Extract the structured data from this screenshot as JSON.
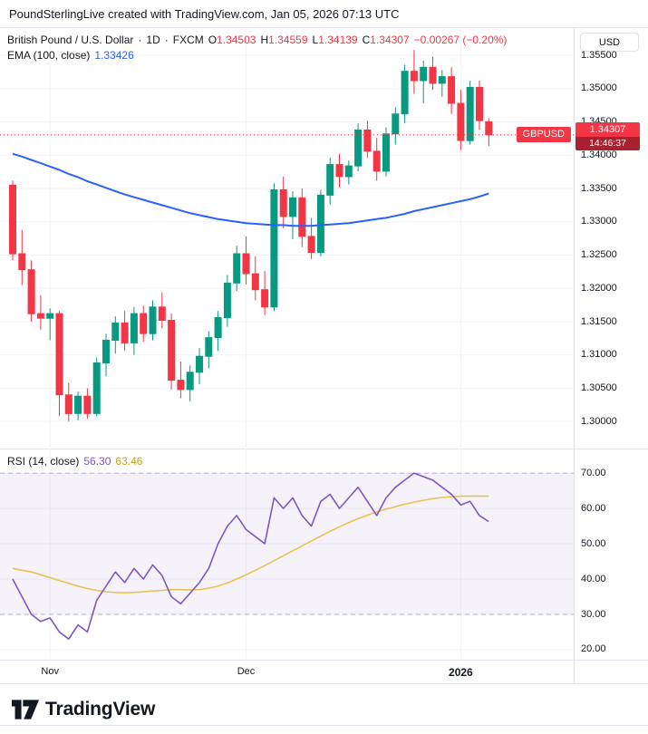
{
  "header": {
    "title": "PoundSterlingLive created with TradingView.com, Jan 05, 2026 07:13 UTC"
  },
  "legend": {
    "title": "British Pound / U.S. Dollar",
    "sep1": "·",
    "interval": "1D",
    "sep2": "·",
    "exchange": "FXCM",
    "open_label": "O",
    "open": "1.34503",
    "high_label": "H",
    "high": "1.34559",
    "low_label": "L",
    "low": "1.34139",
    "close_label": "C",
    "close": "1.34307",
    "change": "−0.00267 (−0.20%)"
  },
  "ema_legend": {
    "label": "EMA (100, close)",
    "value": "1.33426"
  },
  "rsi_legend": {
    "label": "RSI (14, close)",
    "value": "56.30",
    "ma_value": "63.46"
  },
  "price_axis": {
    "currency": "USD",
    "last_price_badge": {
      "symbol": "GBPUSD",
      "price": "1.34307",
      "countdown": "14:46:37"
    }
  },
  "footer": {
    "brand": "TradingView"
  },
  "colors": {
    "up": "#089981",
    "down": "#f23645",
    "ema": "#2962ff",
    "rsi": "#7e57c2",
    "rsi_ma": "#e8c252",
    "rsi_ma_text": "#c9a227",
    "band_fill": "rgba(126,87,194,0.08)",
    "band_line": "rgba(126,87,194,0.45)",
    "grid": "#f0f3fa",
    "border": "#e0e3eb",
    "text": "#131722",
    "badge": "#f23645",
    "countdown": "#a9212f"
  },
  "chart_data": [
    {
      "type": "candlestick",
      "title": "British Pound / U.S. Dollar, 1D, FXCM",
      "last_ohlc": {
        "open": 1.34503,
        "high": 1.34559,
        "low": 1.34139,
        "close": 1.34307,
        "change": -0.00267,
        "change_pct": -0.2
      },
      "last_price": 1.34307,
      "ema_last": 1.33426,
      "y_ticks": [
        1.355,
        1.35,
        1.345,
        1.34,
        1.335,
        1.33,
        1.325,
        1.32,
        1.315,
        1.31,
        1.305,
        1.3
      ],
      "y_axis": {
        "max": 1.3591,
        "min": 1.2958
      },
      "x_ticks": [
        {
          "label": "Nov",
          "index": 4
        },
        {
          "label": "Dec",
          "index": 25
        },
        {
          "label": "2026",
          "index": 48,
          "bold": true
        }
      ],
      "candles": [
        [
          1.3355,
          1.3362,
          1.3242,
          1.3252
        ],
        [
          1.3252,
          1.3288,
          1.3205,
          1.3228
        ],
        [
          1.3228,
          1.3242,
          1.315,
          1.3162
        ],
        [
          1.3162,
          1.319,
          1.3138,
          1.3155
        ],
        [
          1.3155,
          1.317,
          1.3122,
          1.3162
        ],
        [
          1.3162,
          1.3166,
          1.3008,
          1.304
        ],
        [
          1.304,
          1.3058,
          1.3,
          1.3012
        ],
        [
          1.3012,
          1.3045,
          1.3002,
          1.3038
        ],
        [
          1.3038,
          1.305,
          1.3004,
          1.3012
        ],
        [
          1.3012,
          1.3096,
          1.3008,
          1.3088
        ],
        [
          1.3088,
          1.3132,
          1.3068,
          1.3122
        ],
        [
          1.3122,
          1.3158,
          1.3102,
          1.3148
        ],
        [
          1.3148,
          1.3166,
          1.3106,
          1.3118
        ],
        [
          1.3118,
          1.3172,
          1.31,
          1.3162
        ],
        [
          1.3162,
          1.3174,
          1.312,
          1.3132
        ],
        [
          1.3132,
          1.3182,
          1.3122,
          1.3172
        ],
        [
          1.3172,
          1.3194,
          1.314,
          1.3152
        ],
        [
          1.3152,
          1.3162,
          1.3048,
          1.3062
        ],
        [
          1.3062,
          1.309,
          1.3035,
          1.3048
        ],
        [
          1.3048,
          1.3084,
          1.303,
          1.3074
        ],
        [
          1.3074,
          1.311,
          1.3056,
          1.3098
        ],
        [
          1.3098,
          1.3136,
          1.308,
          1.3126
        ],
        [
          1.3126,
          1.3166,
          1.3106,
          1.3156
        ],
        [
          1.3156,
          1.322,
          1.3142,
          1.3208
        ],
        [
          1.3208,
          1.3264,
          1.3196,
          1.3252
        ],
        [
          1.3252,
          1.3278,
          1.3206,
          1.3222
        ],
        [
          1.3222,
          1.3248,
          1.3182,
          1.3198
        ],
        [
          1.3198,
          1.3226,
          1.316,
          1.3172
        ],
        [
          1.3172,
          1.3358,
          1.3166,
          1.3348
        ],
        [
          1.3348,
          1.3368,
          1.329,
          1.3308
        ],
        [
          1.3308,
          1.3346,
          1.3274,
          1.3336
        ],
        [
          1.3336,
          1.335,
          1.3262,
          1.3278
        ],
        [
          1.3278,
          1.3306,
          1.3244,
          1.3254
        ],
        [
          1.3254,
          1.3348,
          1.3248,
          1.334
        ],
        [
          1.334,
          1.3396,
          1.3326,
          1.3386
        ],
        [
          1.3386,
          1.3402,
          1.3352,
          1.3368
        ],
        [
          1.3368,
          1.3392,
          1.3356,
          1.3384
        ],
        [
          1.3384,
          1.3448,
          1.3376,
          1.3438
        ],
        [
          1.3438,
          1.3452,
          1.3396,
          1.3406
        ],
        [
          1.3406,
          1.3426,
          1.3362,
          1.3376
        ],
        [
          1.3376,
          1.3442,
          1.3368,
          1.3432
        ],
        [
          1.3432,
          1.3472,
          1.3416,
          1.3462
        ],
        [
          1.3462,
          1.3536,
          1.3448,
          1.3526
        ],
        [
          1.3526,
          1.3558,
          1.3492,
          1.3512
        ],
        [
          1.3512,
          1.3542,
          1.3478,
          1.3532
        ],
        [
          1.3532,
          1.3548,
          1.3498,
          1.3508
        ],
        [
          1.3508,
          1.3528,
          1.3488,
          1.3518
        ],
        [
          1.3518,
          1.3532,
          1.3462,
          1.3478
        ],
        [
          1.3478,
          1.3498,
          1.3408,
          1.3422
        ],
        [
          1.3422,
          1.3512,
          1.3416,
          1.3502
        ],
        [
          1.3502,
          1.3512,
          1.3438,
          1.3452
        ],
        [
          1.34503,
          1.34559,
          1.34139,
          1.34307
        ]
      ],
      "ema_100": [
        1.3402,
        1.3398,
        1.3393,
        1.3388,
        1.3383,
        1.3378,
        1.3372,
        1.3367,
        1.3361,
        1.3356,
        1.3351,
        1.3346,
        1.3341,
        1.3337,
        1.3333,
        1.3329,
        1.3325,
        1.3321,
        1.3317,
        1.3313,
        1.331,
        1.3307,
        1.3304,
        1.3302,
        1.33,
        1.3298,
        1.3297,
        1.3296,
        1.3295,
        1.3295,
        1.3294,
        1.3294,
        1.3294,
        1.3295,
        1.3296,
        1.3297,
        1.3298,
        1.33,
        1.3302,
        1.3304,
        1.3306,
        1.3309,
        1.3312,
        1.3316,
        1.3319,
        1.3322,
        1.3325,
        1.3328,
        1.3331,
        1.3334,
        1.3338,
        1.33426
      ]
    },
    {
      "type": "line",
      "title": "RSI (14, close)",
      "y_ticks": [
        70,
        60,
        50,
        40,
        30,
        20
      ],
      "y_axis": {
        "max": 76.7,
        "min": 16.9
      },
      "bands": {
        "upper": 70,
        "lower": 30
      },
      "series": [
        {
          "name": "RSI",
          "last": 56.3,
          "values": [
            40,
            35,
            30,
            28,
            29,
            25,
            23,
            27,
            25,
            34,
            38,
            42,
            39,
            43,
            40,
            44,
            41,
            35,
            33,
            36,
            39,
            43,
            50,
            55,
            58,
            54,
            52,
            50,
            63,
            60,
            63,
            58,
            55,
            62,
            64,
            60,
            63,
            66,
            62,
            58,
            63,
            66,
            68,
            70,
            69,
            68,
            66,
            64,
            61,
            62,
            58,
            56.3
          ]
        },
        {
          "name": "RSI-based MA",
          "last": 63.46,
          "values": [
            43,
            42.5,
            42,
            41.2,
            40.4,
            39.6,
            38.8,
            38,
            37.3,
            36.8,
            36.4,
            36.2,
            36.1,
            36.2,
            36.4,
            36.6,
            36.8,
            37,
            37,
            36.9,
            37,
            37.4,
            38,
            38.9,
            40,
            41.2,
            42.5,
            43.8,
            45.2,
            46.6,
            48,
            49.4,
            50.8,
            52.2,
            53.5,
            54.8,
            56,
            57.1,
            58.1,
            59,
            59.8,
            60.5,
            61.2,
            61.8,
            62.3,
            62.8,
            63.1,
            63.3,
            63.45,
            63.5,
            63.5,
            63.46
          ]
        }
      ]
    }
  ]
}
